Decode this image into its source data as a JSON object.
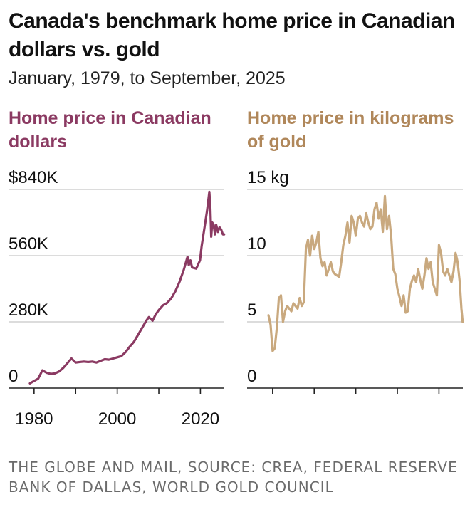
{
  "title": "Canada's benchmark home price in Canadian dollars vs. gold",
  "subtitle": "January, 1979, to September, 2025",
  "source": "THE GLOBE AND MAIL, SOURCE: CREA, FEDERAL RESERVE BANK OF DALLAS, WORLD GOLD COUNCIL",
  "colors": {
    "cad": "#8b3a62",
    "gold": "#c9a97f",
    "gold_title": "#b0875a",
    "grid": "#c8c8c8",
    "axis": "#222222"
  },
  "chart_data": [
    {
      "type": "line",
      "title": "Home price in Canadian dollars",
      "ylim": [
        0,
        840000
      ],
      "xlim": [
        1979,
        2025.75
      ],
      "y_ticks": [
        0,
        280000,
        560000,
        840000
      ],
      "y_tick_labels": [
        "0",
        "280K",
        "560K",
        "$840K"
      ],
      "x_ticks": [
        1980,
        1990,
        2000,
        2010,
        2020
      ],
      "x_tick_labels": [
        "1980",
        "2000",
        "2020"
      ],
      "series": [
        {
          "color": "#8b3a62",
          "x": [
            1979,
            1980,
            1981,
            1982,
            1983,
            1984,
            1985,
            1986,
            1987,
            1988,
            1989,
            1990,
            1991,
            1992,
            1993,
            1994,
            1995,
            1996,
            1997,
            1998,
            1999,
            2000,
            2001,
            2002,
            2003,
            2004,
            2005,
            2006,
            2007,
            2007.6,
            2008.5,
            2009.2,
            2010,
            2011,
            2012,
            2013,
            2014,
            2015,
            2016,
            2016.9,
            2017.2,
            2017.6,
            2018,
            2019,
            2019.9,
            2020.3,
            2021,
            2021.6,
            2022.15,
            2022.4,
            2022.6,
            2022.85,
            2023.2,
            2023.5,
            2023.8,
            2024.2,
            2024.6,
            2025,
            2025.4,
            2025.7
          ],
          "y": [
            20000,
            30000,
            40000,
            75000,
            65000,
            60000,
            62000,
            70000,
            85000,
            105000,
            125000,
            108000,
            110000,
            112000,
            110000,
            112000,
            108000,
            115000,
            122000,
            120000,
            125000,
            130000,
            135000,
            152000,
            175000,
            195000,
            225000,
            255000,
            285000,
            300000,
            285000,
            310000,
            330000,
            350000,
            360000,
            380000,
            410000,
            450000,
            500000,
            555000,
            520000,
            540000,
            510000,
            505000,
            540000,
            600000,
            680000,
            750000,
            830000,
            760000,
            640000,
            700000,
            690000,
            650000,
            690000,
            660000,
            680000,
            670000,
            650000,
            650000
          ]
        }
      ]
    },
    {
      "type": "line",
      "title": "Home price in kilograms of gold",
      "ylim": [
        0,
        15
      ],
      "xlim": [
        1979,
        2025.75
      ],
      "y_ticks": [
        0,
        5,
        10,
        15
      ],
      "y_tick_labels": [
        "0",
        "5",
        "10",
        "15 kg"
      ],
      "x_ticks": [
        1980,
        1990,
        2000,
        2010,
        2020
      ],
      "series": [
        {
          "color": "#c9a97f",
          "x": [
            1979,
            1979.5,
            1980,
            1980.5,
            1981,
            1981.5,
            1982,
            1982.5,
            1983,
            1983.5,
            1984,
            1984.5,
            1985,
            1985.5,
            1986,
            1986.5,
            1987,
            1987.5,
            1988,
            1988.5,
            1989,
            1989.5,
            1990,
            1990.5,
            1991,
            1991.5,
            1992,
            1992.5,
            1993,
            1993.5,
            1994,
            1994.5,
            1995,
            1995.5,
            1996,
            1996.5,
            1997,
            1997.5,
            1998,
            1998.5,
            1999,
            1999.5,
            2000,
            2000.5,
            2001,
            2001.5,
            2002,
            2002.5,
            2003,
            2003.5,
            2004,
            2004.5,
            2005,
            2005.5,
            2006,
            2006.5,
            2007,
            2007.5,
            2008,
            2008.5,
            2009,
            2009.5,
            2010,
            2010.5,
            2011,
            2011.5,
            2012,
            2012.5,
            2013,
            2013.5,
            2014,
            2014.5,
            2015,
            2015.5,
            2016,
            2016.5,
            2017,
            2017.5,
            2018,
            2018.5,
            2019,
            2019.5,
            2020,
            2020.5,
            2021,
            2021.5,
            2022,
            2022.5,
            2023,
            2023.5,
            2024,
            2024.5,
            2025,
            2025.4,
            2025.7
          ],
          "y": [
            5.5,
            4.8,
            2.8,
            3.0,
            4.5,
            6.8,
            7.0,
            5.0,
            5.8,
            6.2,
            6.0,
            5.8,
            6.4,
            6.2,
            6.0,
            6.8,
            6.2,
            6.5,
            10.5,
            11.2,
            10.0,
            11.5,
            10.5,
            11.0,
            11.8,
            9.8,
            9.2,
            9.5,
            8.5,
            9.0,
            9.5,
            8.8,
            8.6,
            8.5,
            8.4,
            9.5,
            10.8,
            11.5,
            12.5,
            11.0,
            13.0,
            12.5,
            11.5,
            12.8,
            13.0,
            12.5,
            12.2,
            13.2,
            12.5,
            12.0,
            12.2,
            13.5,
            14.0,
            12.8,
            13.5,
            11.8,
            14.5,
            12.0,
            13.0,
            11.5,
            9.0,
            8.6,
            7.5,
            6.9,
            6.2,
            7.0,
            5.7,
            5.8,
            7.5,
            8.1,
            8.5,
            8.0,
            9.0,
            8.2,
            7.5,
            8.5,
            9.8,
            9.0,
            9.5,
            8.0,
            7.5,
            7.0,
            10.8,
            10.2,
            8.8,
            8.5,
            9.0,
            8.5,
            8.0,
            8.8,
            10.2,
            9.5,
            8.0,
            6.0,
            5.0
          ]
        }
      ]
    }
  ]
}
